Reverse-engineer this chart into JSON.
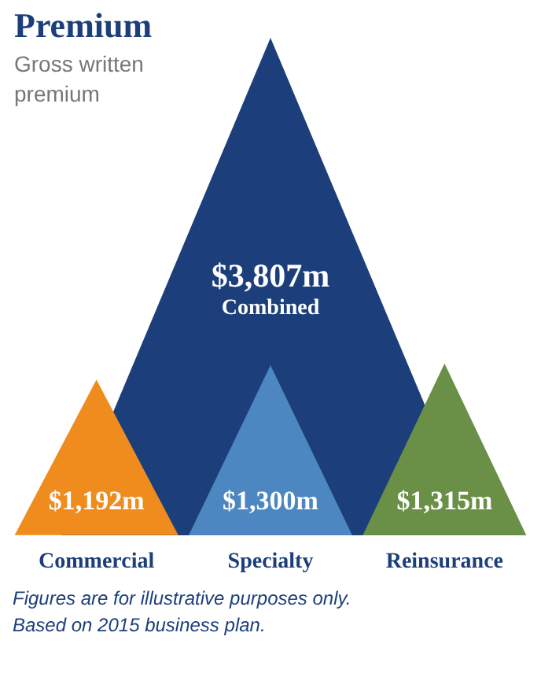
{
  "chart_data": {
    "type": "other",
    "title": "Premium",
    "subtitle": "Gross written premium",
    "categories": [
      "Commercial",
      "Specialty",
      "Reinsurance"
    ],
    "series": [
      {
        "name": "Combined",
        "colors": [
          null,
          "#1c3f7b",
          null
        ],
        "values": [
          null,
          3807,
          null
        ],
        "value_labels": [
          null,
          "$3,807m",
          null
        ]
      },
      {
        "colors": [
          "#f08c1e",
          "#4c87c1",
          "#6a8f47"
        ],
        "values": [
          1192,
          1300,
          1315
        ],
        "value_labels": [
          "$1,192m",
          "$1,300m",
          "$1,315m"
        ]
      }
    ],
    "annotations": [
      "Figures are for illustrative purposes only.",
      "Based on 2015 business plan."
    ],
    "legend": false
  }
}
